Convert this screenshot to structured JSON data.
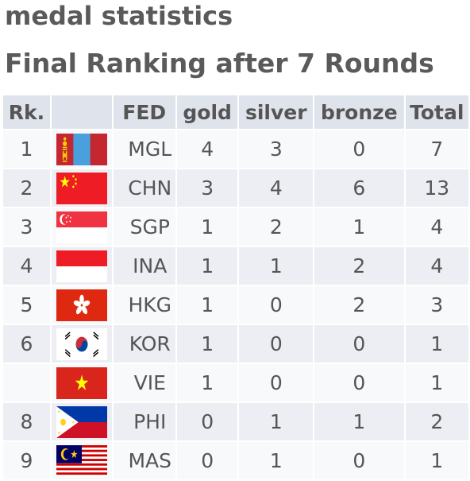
{
  "page": {
    "title": "medal statistics",
    "subtitle": "Final Ranking after 7 Rounds"
  },
  "table": {
    "headers": {
      "rank": "Rk.",
      "flag": "",
      "fed": "FED",
      "gold": "gold",
      "silver": "silver",
      "bronze": "bronze",
      "total": "Total"
    },
    "rows": [
      {
        "rank": "1",
        "flag": "mongolia-flag-icon",
        "fed": "MGL",
        "gold": "4",
        "silver": "3",
        "bronze": "0",
        "total": "7"
      },
      {
        "rank": "2",
        "flag": "china-flag-icon",
        "fed": "CHN",
        "gold": "3",
        "silver": "4",
        "bronze": "6",
        "total": "13"
      },
      {
        "rank": "3",
        "flag": "singapore-flag-icon",
        "fed": "SGP",
        "gold": "1",
        "silver": "2",
        "bronze": "1",
        "total": "4"
      },
      {
        "rank": "4",
        "flag": "indonesia-flag-icon",
        "fed": "INA",
        "gold": "1",
        "silver": "1",
        "bronze": "2",
        "total": "4"
      },
      {
        "rank": "5",
        "flag": "hong-kong-flag-icon",
        "fed": "HKG",
        "gold": "1",
        "silver": "0",
        "bronze": "2",
        "total": "3"
      },
      {
        "rank": "6",
        "flag": "korea-flag-icon",
        "fed": "KOR",
        "gold": "1",
        "silver": "0",
        "bronze": "0",
        "total": "1"
      },
      {
        "rank": "",
        "flag": "vietnam-flag-icon",
        "fed": "VIE",
        "gold": "1",
        "silver": "0",
        "bronze": "0",
        "total": "1"
      },
      {
        "rank": "8",
        "flag": "philippines-flag-icon",
        "fed": "PHI",
        "gold": "0",
        "silver": "1",
        "bronze": "1",
        "total": "2"
      },
      {
        "rank": "9",
        "flag": "malaysia-flag-icon",
        "fed": "MAS",
        "gold": "0",
        "silver": "1",
        "bronze": "0",
        "total": "1"
      }
    ]
  },
  "colors": {
    "header_bg": "#dfe3eb",
    "row_light": "#f8f9fb",
    "row_dark": "#eceef3",
    "text": "#555555"
  }
}
